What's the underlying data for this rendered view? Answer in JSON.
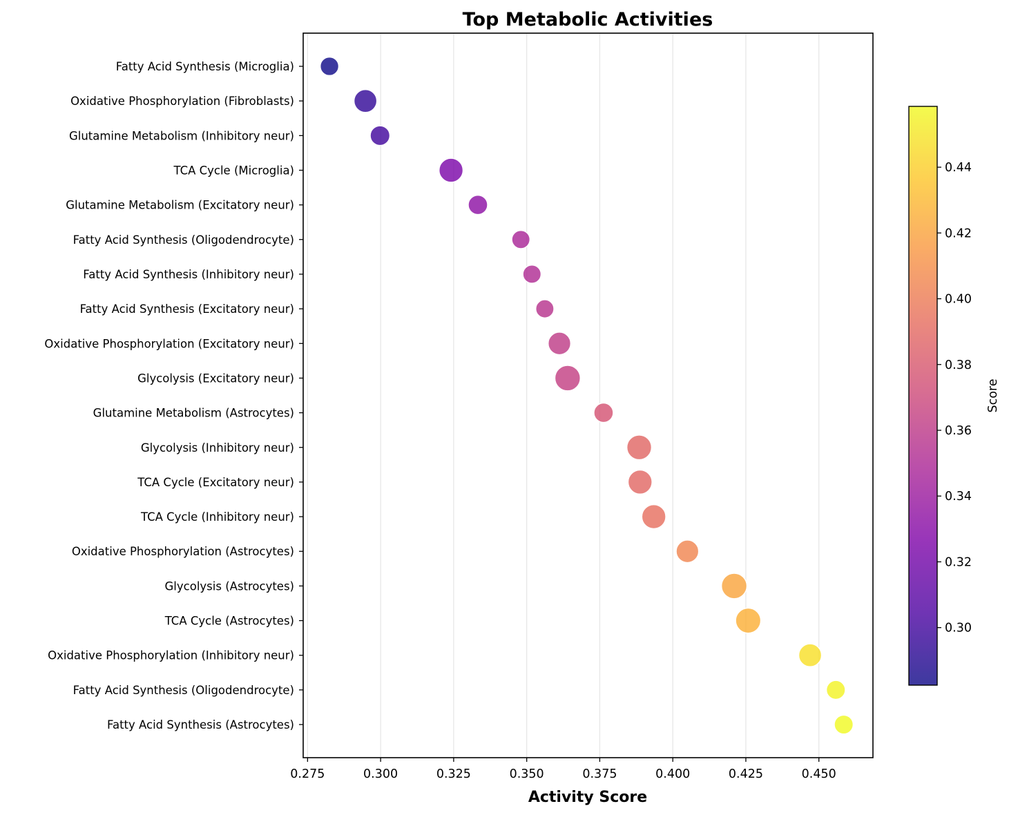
{
  "chart_data": {
    "type": "scatter",
    "title": "Top Metabolic Activities",
    "xlabel": "Activity Score",
    "ylabel": "",
    "xlim": [
      0.2735,
      0.4685
    ],
    "xticks": [
      "0.275",
      "0.300",
      "0.325",
      "0.350",
      "0.375",
      "0.400",
      "0.425",
      "0.450"
    ],
    "xtick_values": [
      0.275,
      0.3,
      0.325,
      0.35,
      0.375,
      0.4,
      0.425,
      0.45
    ],
    "grid": "vertical",
    "colormap": "plasma",
    "colorbar": {
      "label": "Score",
      "range": [
        0.2825,
        0.4585
      ],
      "ticks": [
        "0.30",
        "0.32",
        "0.34",
        "0.36",
        "0.38",
        "0.40",
        "0.42",
        "0.44"
      ],
      "tick_values": [
        0.3,
        0.32,
        0.34,
        0.36,
        0.38,
        0.4,
        0.42,
        0.44
      ]
    },
    "points": [
      {
        "label": "Fatty Acid Synthesis (Microglia)",
        "x": 0.2825,
        "size": 0.42
      },
      {
        "label": "Oxidative Phosphorylation (Fibroblasts)",
        "x": 0.2948,
        "size": 0.72
      },
      {
        "label": "Glutamine Metabolism (Inhibitory neur)",
        "x": 0.2998,
        "size": 0.5
      },
      {
        "label": "TCA Cycle (Microglia)",
        "x": 0.3241,
        "size": 0.8
      },
      {
        "label": "Glutamine Metabolism (Excitatory neur)",
        "x": 0.3333,
        "size": 0.48
      },
      {
        "label": "Fatty Acid Synthesis (Oligodendrocyte)",
        "x": 0.348,
        "size": 0.4
      },
      {
        "label": "Fatty Acid Synthesis (Inhibitory neur)",
        "x": 0.3518,
        "size": 0.4
      },
      {
        "label": "Fatty Acid Synthesis (Excitatory neur)",
        "x": 0.3562,
        "size": 0.4
      },
      {
        "label": "Oxidative Phosphorylation (Excitatory neur)",
        "x": 0.3612,
        "size": 0.7
      },
      {
        "label": "Glycolysis (Excitatory neur)",
        "x": 0.364,
        "size": 0.9
      },
      {
        "label": "Glutamine Metabolism (Astrocytes)",
        "x": 0.3763,
        "size": 0.48
      },
      {
        "label": "Glycolysis (Inhibitory neur)",
        "x": 0.3885,
        "size": 0.85
      },
      {
        "label": "TCA Cycle (Excitatory neur)",
        "x": 0.3888,
        "size": 0.8
      },
      {
        "label": "TCA Cycle (Inhibitory neur)",
        "x": 0.3935,
        "size": 0.8
      },
      {
        "label": "Oxidative Phosphorylation (Astrocytes)",
        "x": 0.405,
        "size": 0.7
      },
      {
        "label": "Glycolysis (Astrocytes)",
        "x": 0.421,
        "size": 0.9
      },
      {
        "label": "TCA Cycle (Astrocytes)",
        "x": 0.4258,
        "size": 0.88
      },
      {
        "label": "Oxidative Phosphorylation (Inhibitory neur)",
        "x": 0.447,
        "size": 0.72
      },
      {
        "label": "Fatty Acid Synthesis (Oligodendrocyte)",
        "x": 0.4558,
        "size": 0.45
      },
      {
        "label": "Fatty Acid Synthesis (Astrocytes)",
        "x": 0.4585,
        "size": 0.45
      }
    ]
  }
}
